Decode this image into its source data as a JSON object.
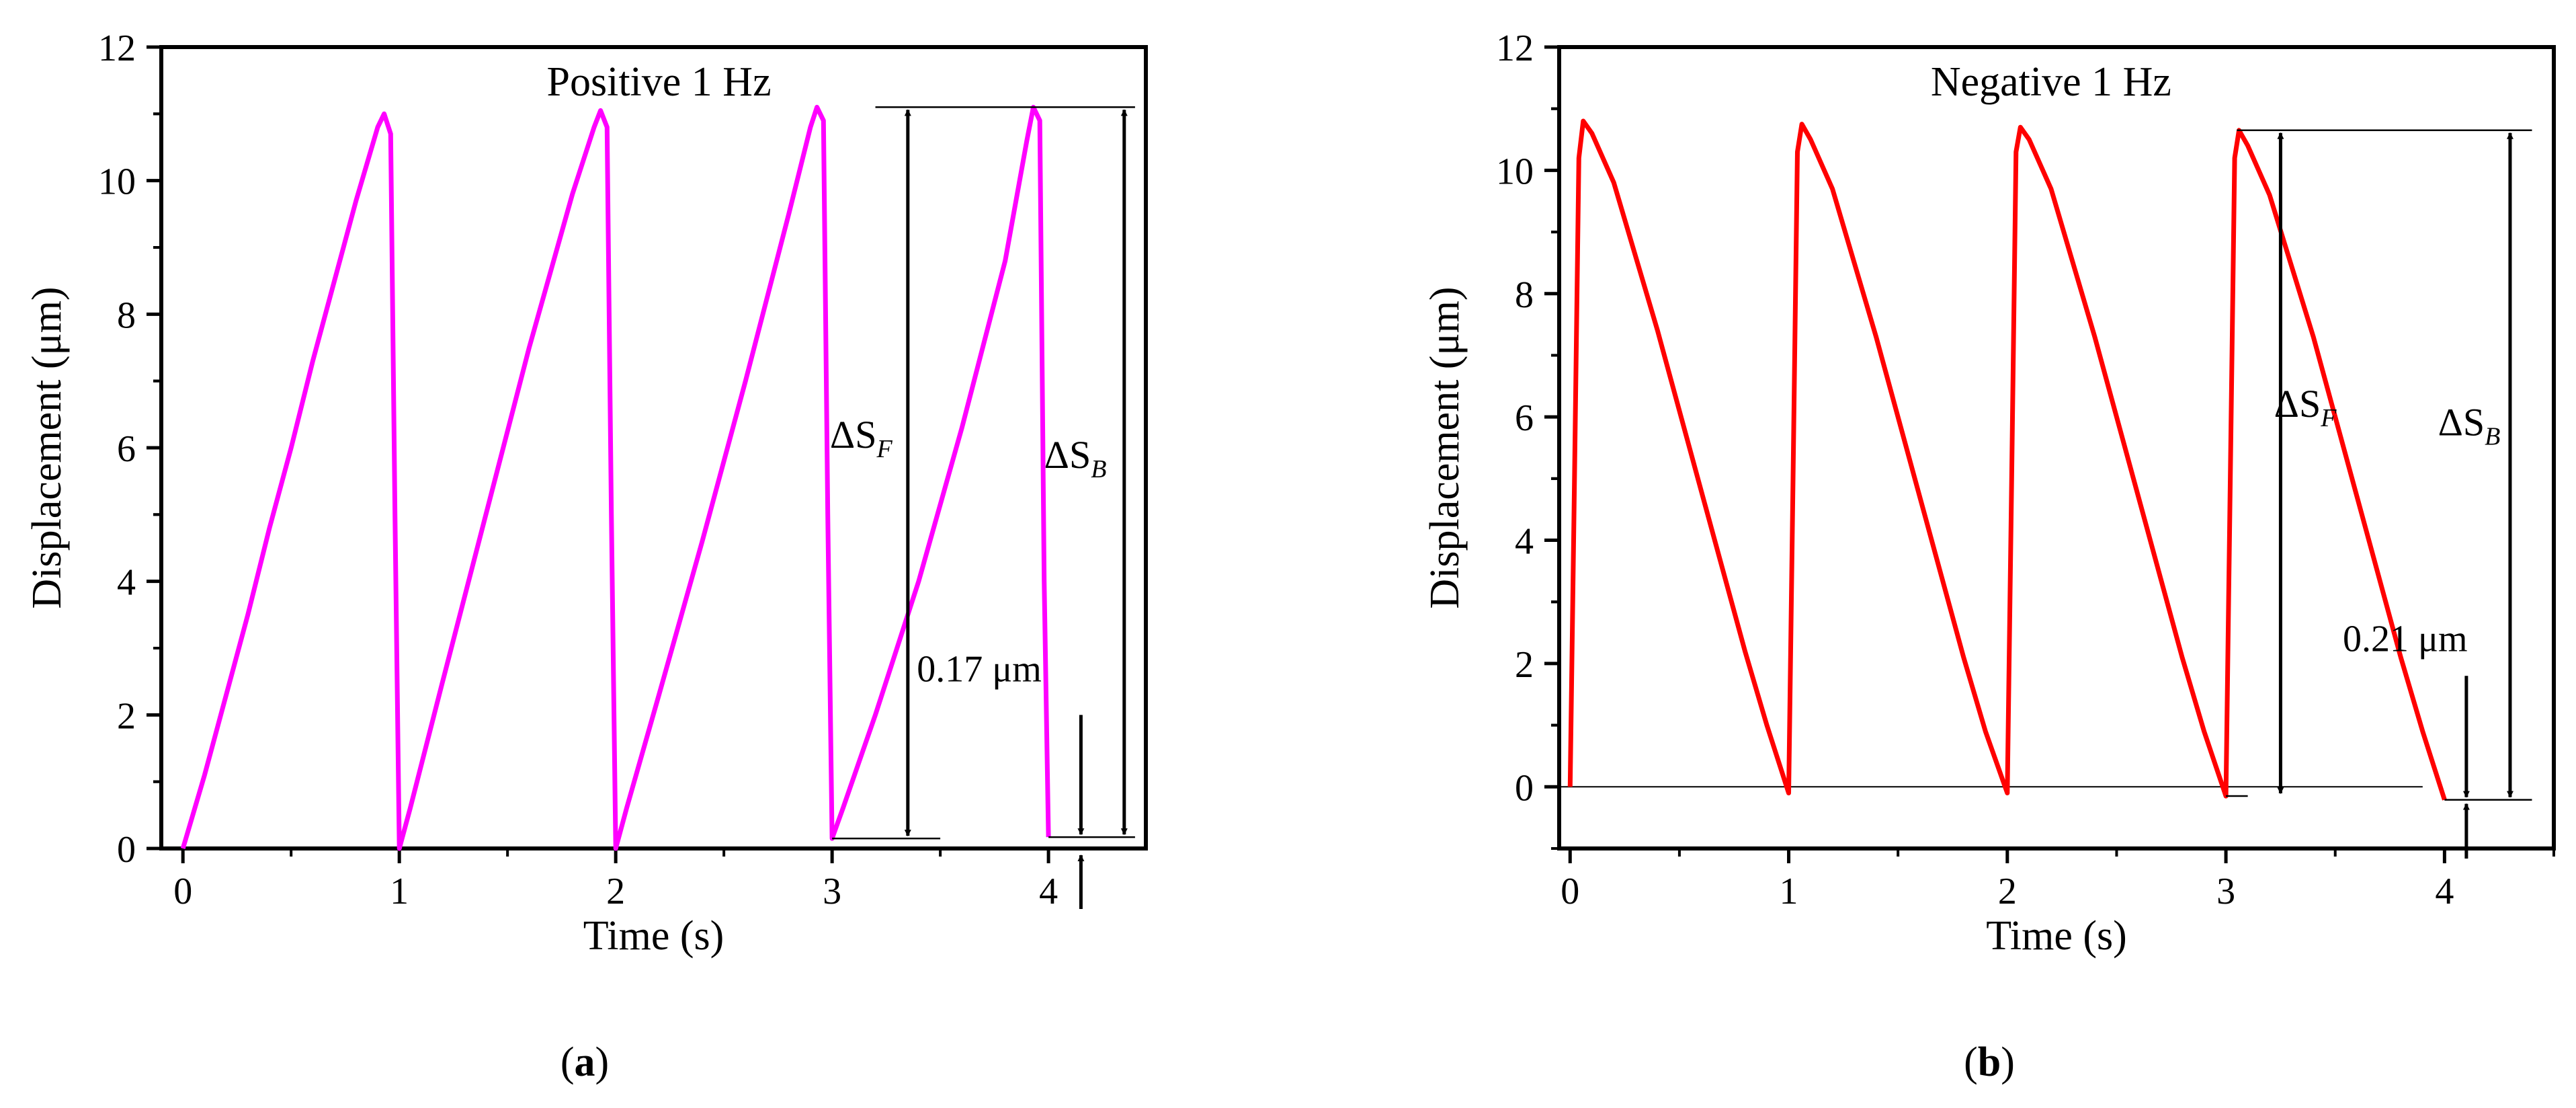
{
  "chart_data": [
    {
      "panel_label": "a",
      "type": "line",
      "title": "Positive    1 Hz",
      "xlabel": "Time (s)",
      "ylabel": "Displacement (μm)",
      "xlim": [
        -0.1,
        4.45
      ],
      "ylim": [
        0,
        12
      ],
      "xticks": [
        0,
        1,
        2,
        3,
        4
      ],
      "yticks": [
        0,
        2,
        4,
        6,
        8,
        10,
        12
      ],
      "grid": false,
      "legend": "none",
      "series": [
        {
          "name": "Positive 1 Hz",
          "color": "#ff00ff",
          "x": [
            0,
            0.1,
            0.2,
            0.3,
            0.4,
            0.5,
            0.6,
            0.7,
            0.8,
            0.9,
            0.93,
            0.96,
            0.98,
            1.0,
            1.05,
            1.2,
            1.4,
            1.6,
            1.8,
            1.9,
            1.93,
            1.96,
            1.98,
            2.0,
            2.05,
            2.2,
            2.4,
            2.6,
            2.8,
            2.9,
            2.93,
            2.96,
            2.98,
            3.0,
            3.05,
            3.2,
            3.4,
            3.6,
            3.8,
            3.9,
            3.93,
            3.96,
            3.98,
            4.0
          ],
          "y": [
            0,
            1.1,
            2.3,
            3.5,
            4.8,
            6.0,
            7.3,
            8.5,
            9.7,
            10.8,
            11.0,
            10.7,
            5.0,
            0.0,
            0.6,
            2.5,
            5.0,
            7.5,
            9.8,
            10.8,
            11.05,
            10.8,
            5.0,
            0.0,
            0.6,
            2.3,
            4.6,
            7.0,
            9.5,
            10.8,
            11.1,
            10.9,
            5.0,
            0.15,
            0.6,
            2.0,
            4.0,
            6.3,
            8.8,
            10.6,
            11.1,
            10.9,
            4.0,
            0.17
          ]
        }
      ],
      "annotations": {
        "sf_label_main": "ΔS",
        "sf_label_sub": "F",
        "sb_label_main": "ΔS",
        "sb_label_sub": "B",
        "offset_label": "0.17 μm",
        "top_level": 11.1,
        "sf_bottom": 0.15,
        "sb_bottom": 0.17,
        "sf_arrow_x": 3.35,
        "sb_arrow_x": 4.35,
        "offset_arrow_x": 4.15
      }
    },
    {
      "panel_label": "b",
      "type": "line",
      "title": "Negative    1 Hz",
      "xlabel": "Time (s)",
      "ylabel": "Displacement (μm)",
      "xlim": [
        -0.05,
        4.5
      ],
      "ylim": [
        -1,
        12
      ],
      "xticks": [
        0,
        1,
        2,
        3,
        4
      ],
      "yticks": [
        0,
        2,
        4,
        6,
        8,
        10,
        12
      ],
      "grid": false,
      "legend": "none",
      "series": [
        {
          "name": "Negative 1 Hz",
          "color": "#ff0000",
          "x": [
            0,
            0.02,
            0.04,
            0.06,
            0.1,
            0.2,
            0.4,
            0.6,
            0.8,
            0.9,
            1.0,
            1.02,
            1.04,
            1.06,
            1.1,
            1.2,
            1.4,
            1.6,
            1.8,
            1.9,
            2.0,
            2.02,
            2.04,
            2.06,
            2.1,
            2.2,
            2.4,
            2.6,
            2.8,
            2.9,
            3.0,
            3.02,
            3.04,
            3.06,
            3.1,
            3.2,
            3.4,
            3.6,
            3.8,
            3.9,
            4.0
          ],
          "y": [
            0,
            5.0,
            10.2,
            10.8,
            10.6,
            9.8,
            7.4,
            4.8,
            2.2,
            1.0,
            -0.1,
            5.0,
            10.3,
            10.75,
            10.5,
            9.7,
            7.3,
            4.7,
            2.1,
            0.9,
            -0.1,
            5.0,
            10.3,
            10.7,
            10.5,
            9.7,
            7.3,
            4.7,
            2.1,
            0.9,
            -0.15,
            5.0,
            10.2,
            10.65,
            10.4,
            9.6,
            7.3,
            4.7,
            2.1,
            0.9,
            -0.21
          ]
        }
      ],
      "annotations": {
        "sf_label_main": "ΔS",
        "sf_label_sub": "F",
        "sb_label_main": "ΔS",
        "sb_label_sub": "B",
        "offset_label": "0.21 μm",
        "top_level": 10.65,
        "zero_level": 0.0,
        "sf_bottom": -0.15,
        "sb_bottom": -0.21,
        "sf_arrow_x": 3.25,
        "sb_arrow_x": 4.3,
        "offset_arrow_x": 4.1
      }
    }
  ]
}
